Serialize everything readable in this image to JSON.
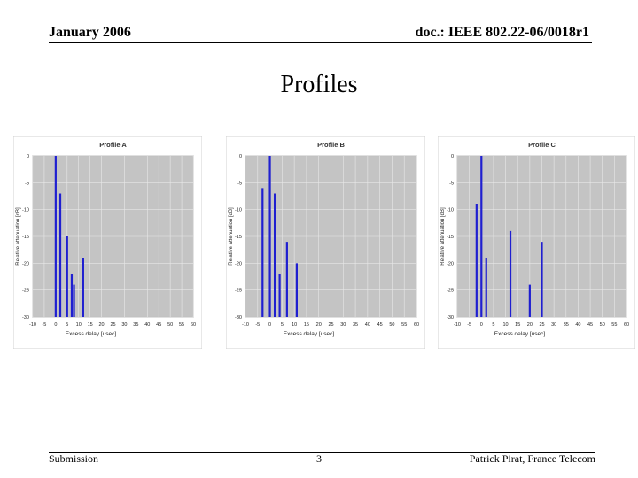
{
  "header": {
    "left": "January 2006",
    "right": "doc.: IEEE 802.22-06/0018r1"
  },
  "title": "Profiles",
  "footer": {
    "left": "Submission",
    "center": "3",
    "right": "Patrick Pirat, France Telecom"
  },
  "colors": {
    "bar": "#1f1fd0",
    "plot_bg": "#c4c4c4",
    "panel_bg": "#ffffff",
    "grid": "#e8e8e8"
  },
  "chart_data": [
    {
      "type": "bar",
      "title": "Profile A",
      "xlabel": "Excess delay [usec]",
      "ylabel": "Relative attenuation [dB]",
      "xticks": [
        -10,
        -5,
        0,
        5,
        10,
        15,
        20,
        25,
        30,
        35,
        40,
        45,
        50,
        55,
        60
      ],
      "yticks": [
        0,
        -5,
        -10,
        -15,
        -20,
        -25,
        -30
      ],
      "xlim": [
        -10,
        60
      ],
      "ylim": [
        -30,
        0
      ],
      "x": [
        0,
        2,
        5,
        7,
        8,
        12
      ],
      "values": [
        0,
        -7,
        -15,
        -22,
        -24,
        -19
      ]
    },
    {
      "type": "bar",
      "title": "Profile B",
      "xlabel": "Excess delay [usec]",
      "ylabel": "Relative attenuation [dB]",
      "xticks": [
        -10,
        -5,
        0,
        5,
        10,
        15,
        20,
        25,
        30,
        35,
        40,
        45,
        50,
        55,
        60
      ],
      "yticks": [
        0,
        -5,
        -10,
        -15,
        -20,
        -25,
        -30
      ],
      "xlim": [
        -10,
        60
      ],
      "ylim": [
        -30,
        0
      ],
      "x": [
        -3,
        0,
        2,
        4,
        7,
        11
      ],
      "values": [
        -6,
        0,
        -7,
        -22,
        -16,
        -20
      ]
    },
    {
      "type": "bar",
      "title": "Profile C",
      "xlabel": "Excess delay [usec]",
      "ylabel": "Relative attenuation [dB]",
      "xticks": [
        -10,
        -5,
        0,
        5,
        10,
        15,
        20,
        25,
        30,
        35,
        40,
        45,
        50,
        55,
        60
      ],
      "yticks": [
        0,
        -5,
        -10,
        -15,
        -20,
        -25,
        -30
      ],
      "xlim": [
        -10,
        60
      ],
      "ylim": [
        -30,
        0
      ],
      "x": [
        -2,
        0,
        2,
        12,
        20,
        25
      ],
      "values": [
        -9,
        0,
        -19,
        -14,
        -24,
        -16
      ]
    }
  ]
}
